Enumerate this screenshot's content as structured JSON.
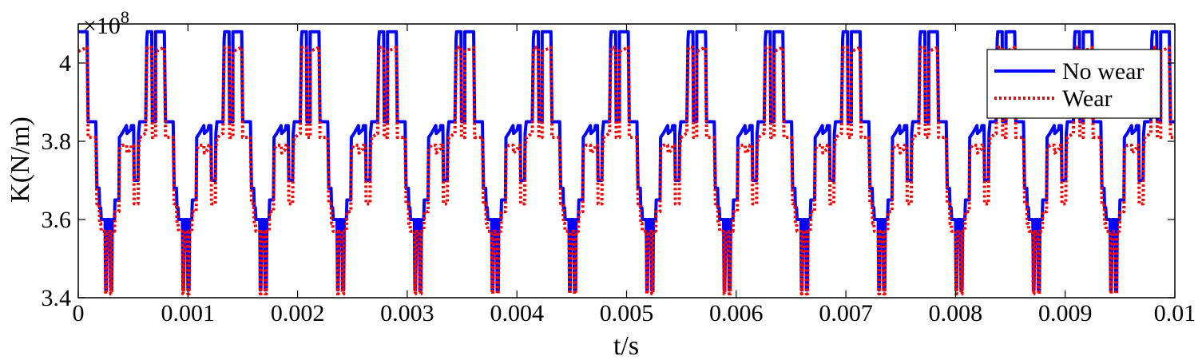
{
  "chart_data": {
    "type": "line",
    "title": "",
    "xlabel": "t/s",
    "ylabel": "K(N/m)",
    "y_multiplier_label": {
      "base": "×10",
      "exponent": "8"
    },
    "xlim": [
      0,
      0.01
    ],
    "ylim": [
      3.4,
      4.1
    ],
    "x_ticks": [
      0,
      0.001,
      0.002,
      0.003,
      0.004,
      0.005,
      0.006,
      0.007,
      0.008,
      0.009,
      0.01
    ],
    "x_tick_labels": [
      "0",
      "0.001",
      "0.002",
      "0.003",
      "0.004",
      "0.005",
      "0.006",
      "0.007",
      "0.008",
      "0.009",
      "0.01"
    ],
    "y_ticks": [
      3.4,
      3.6,
      3.8,
      4.0
    ],
    "y_tick_labels": [
      "3.4",
      "3.6",
      "3.8",
      "4"
    ],
    "grid": false,
    "legend_position": "top-right",
    "period": 0.000705,
    "series": [
      {
        "name": "No wear",
        "color": "#0000ff",
        "style": "solid",
        "one_period": {
          "t": [
            0,
            8e-05,
            9e-05,
            0.00016,
            0.00017,
            0.00019,
            0.000195,
            0.000205,
            0.00021,
            0.00024,
            0.000245,
            0.00025,
            0.000255,
            0.000265,
            0.00027,
            0.00029,
            0.000295,
            0.000305,
            0.00031,
            0.00033,
            0.000335,
            0.00037,
            0.000375,
            0.0004,
            0.00044,
            0.000445,
            0.00048,
            0.000485,
            0.000505,
            0.00051,
            0.000545,
            0.00055,
            0.00056,
            0.000565,
            0.00061,
            0.000615,
            0.000625,
            0.00063,
            0.00067,
            0.000675,
            0.000705
          ],
          "y": [
            4.08,
            4.08,
            3.85,
            3.85,
            3.68,
            3.68,
            3.63,
            3.63,
            3.6,
            3.6,
            3.6,
            3.42,
            3.42,
            3.6,
            3.6,
            3.6,
            3.42,
            3.42,
            3.6,
            3.6,
            3.65,
            3.65,
            3.81,
            3.82,
            3.84,
            3.82,
            3.83,
            3.84,
            3.84,
            3.7,
            3.7,
            3.82,
            3.85,
            3.85,
            3.85,
            3.85,
            4.06,
            4.08,
            4.08,
            3.85,
            3.85
          ]
        }
      },
      {
        "name": "Wear",
        "color": "#ff0000",
        "style": "dotted",
        "one_period": {
          "t": [
            0,
            8e-05,
            9e-05,
            0.00016,
            0.00017,
            0.00019,
            0.000195,
            0.000205,
            0.00021,
            0.00024,
            0.000245,
            0.00025,
            0.000255,
            0.000265,
            0.00027,
            0.00029,
            0.000295,
            0.000305,
            0.00031,
            0.00033,
            0.000335,
            0.00037,
            0.000375,
            0.0004,
            0.00044,
            0.000445,
            0.00048,
            0.000485,
            0.000505,
            0.00051,
            0.000545,
            0.00055,
            0.00056,
            0.000565,
            0.00061,
            0.000615,
            0.000625,
            0.00063,
            0.00067,
            0.000675,
            0.000705
          ],
          "y": [
            4.03,
            4.04,
            3.81,
            3.81,
            3.64,
            3.64,
            3.59,
            3.59,
            3.57,
            3.57,
            3.57,
            3.41,
            3.41,
            3.57,
            3.57,
            3.57,
            3.41,
            3.41,
            3.57,
            3.57,
            3.62,
            3.62,
            3.78,
            3.79,
            3.79,
            3.77,
            3.78,
            3.79,
            3.79,
            3.64,
            3.64,
            3.78,
            3.81,
            3.81,
            3.82,
            3.82,
            4.02,
            4.04,
            4.04,
            3.81,
            3.81
          ]
        }
      }
    ]
  }
}
